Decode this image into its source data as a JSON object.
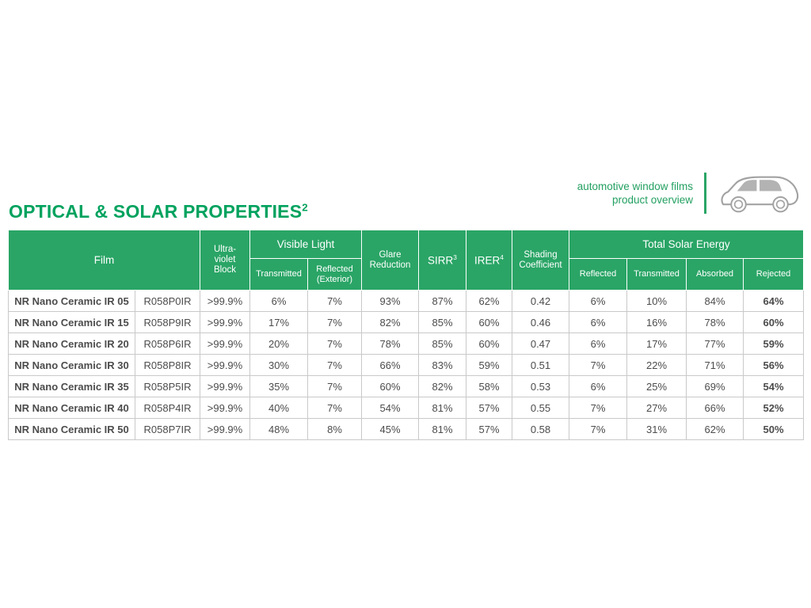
{
  "brand": {
    "line1": "automotive window films",
    "line2": "product overview"
  },
  "title": {
    "text": "OPTICAL & SOLAR PROPERTIES",
    "sup": "2"
  },
  "colors": {
    "header_green": "#2aa566",
    "subheader_green": "#85c49e",
    "title_green": "#00a25e",
    "brand_green": "#23a061",
    "cell_border": "#c9c9c9",
    "car_gray": "#a2a2a2"
  },
  "table": {
    "header": {
      "film": "Film",
      "uv_block": "Ultra-violet Block",
      "visible_light": "Visible Light",
      "transmitted": "Transmitted",
      "reflected_exterior": "Reflected (Exterior)",
      "glare_reduction": "Glare Reduction",
      "sirr": {
        "label": "SIRR",
        "sup": "3"
      },
      "irer": {
        "label": "IRER",
        "sup": "4"
      },
      "shading_coefficient": "Shading Coefficient",
      "total_solar_energy": "Total Solar Energy",
      "tse_reflected": "Reflected",
      "tse_transmitted": "Transmitted",
      "tse_absorbed": "Absorbed",
      "tse_rejected": "Rejected"
    },
    "rows": [
      {
        "name": "NR Nano Ceramic IR 05",
        "code": "R058P0IR",
        "uv": ">99.9%",
        "vlt_t": "6%",
        "vlt_r": "7%",
        "glare": "93%",
        "sirr": "87%",
        "irer": "62%",
        "sc": "0.42",
        "tse_r": "6%",
        "tse_t": "10%",
        "tse_a": "84%",
        "tse_rej": "64%"
      },
      {
        "name": "NR Nano Ceramic IR 15",
        "code": "R058P9IR",
        "uv": ">99.9%",
        "vlt_t": "17%",
        "vlt_r": "7%",
        "glare": "82%",
        "sirr": "85%",
        "irer": "60%",
        "sc": "0.46",
        "tse_r": "6%",
        "tse_t": "16%",
        "tse_a": "78%",
        "tse_rej": "60%"
      },
      {
        "name": "NR Nano Ceramic IR 20",
        "code": "R058P6IR",
        "uv": ">99.9%",
        "vlt_t": "20%",
        "vlt_r": "7%",
        "glare": "78%",
        "sirr": "85%",
        "irer": "60%",
        "sc": "0.47",
        "tse_r": "6%",
        "tse_t": "17%",
        "tse_a": "77%",
        "tse_rej": "59%"
      },
      {
        "name": "NR Nano Ceramic IR 30",
        "code": "R058P8IR",
        "uv": ">99.9%",
        "vlt_t": "30%",
        "vlt_r": "7%",
        "glare": "66%",
        "sirr": "83%",
        "irer": "59%",
        "sc": "0.51",
        "tse_r": "7%",
        "tse_t": "22%",
        "tse_a": "71%",
        "tse_rej": "56%"
      },
      {
        "name": "NR Nano Ceramic IR 35",
        "code": "R058P5IR",
        "uv": ">99.9%",
        "vlt_t": "35%",
        "vlt_r": "7%",
        "glare": "60%",
        "sirr": "82%",
        "irer": "58%",
        "sc": "0.53",
        "tse_r": "6%",
        "tse_t": "25%",
        "tse_a": "69%",
        "tse_rej": "54%"
      },
      {
        "name": "NR Nano Ceramic IR 40",
        "code": "R058P4IR",
        "uv": ">99.9%",
        "vlt_t": "40%",
        "vlt_r": "7%",
        "glare": "54%",
        "sirr": "81%",
        "irer": "57%",
        "sc": "0.55",
        "tse_r": "7%",
        "tse_t": "27%",
        "tse_a": "66%",
        "tse_rej": "52%"
      },
      {
        "name": "NR Nano Ceramic IR 50",
        "code": "R058P7IR",
        "uv": ">99.9%",
        "vlt_t": "48%",
        "vlt_r": "8%",
        "glare": "45%",
        "sirr": "81%",
        "irer": "57%",
        "sc": "0.58",
        "tse_r": "7%",
        "tse_t": "31%",
        "tse_a": "62%",
        "tse_rej": "50%"
      }
    ]
  }
}
